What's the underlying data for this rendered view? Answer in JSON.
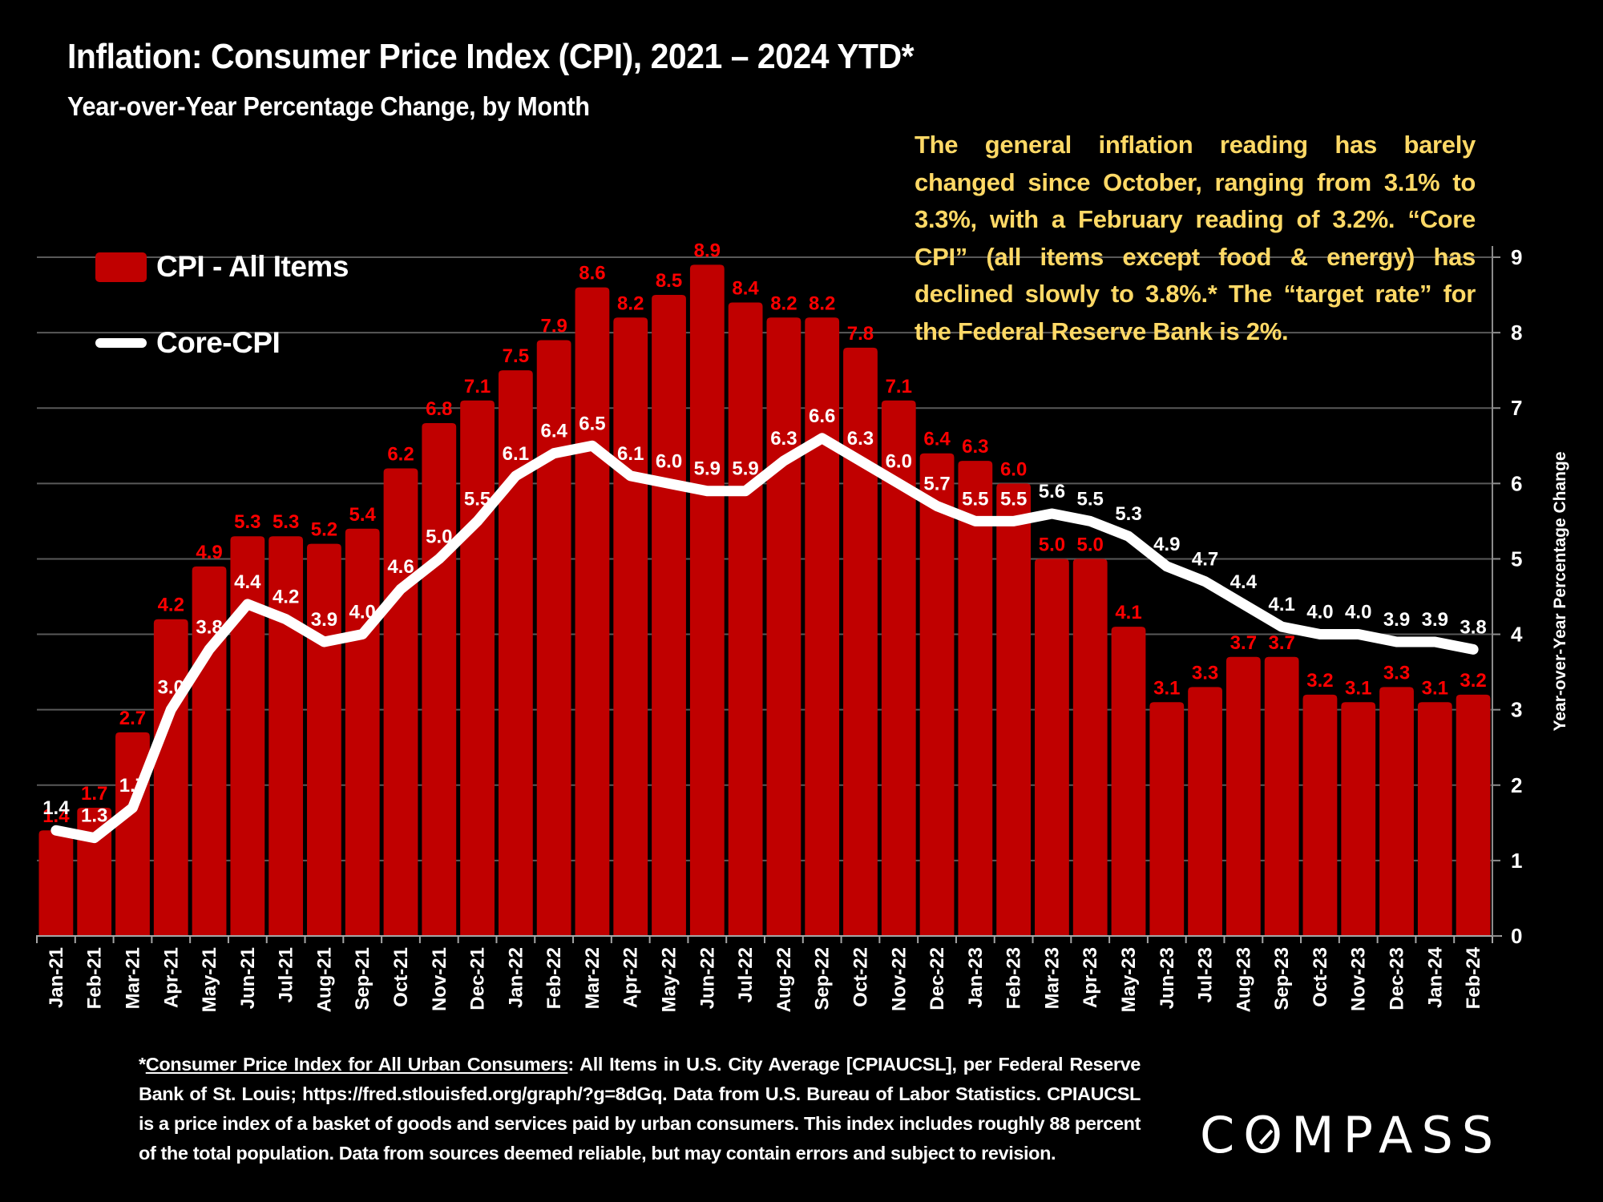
{
  "header": {
    "title": "Inflation: Consumer Price Index (CPI), 2021 – 2024 YTD*",
    "subtitle": "Year-over-Year Percentage Change, by Month"
  },
  "annotation": {
    "text": "The general inflation reading has barely changed since October, ranging from 3.1% to 3.3%, with a February reading of 3.2%. “Core CPI” (all items except food & energy) has declined slowly to 3.8%.*  The “target rate” for the Federal Reserve Bank is 2%.",
    "color": "#FFD966"
  },
  "footnote": {
    "prefix": "*",
    "link_text": "Consumer Price Index for All Urban Consumers",
    "body": ": All Items in U.S. City Average [CPIAUCSL], per Federal Reserve Bank of St. Louis; https://fred.stlouisfed.org/graph/?g=8dGq. Data from U.S. Bureau of Labor Statistics. CPIAUCSL is a price index of a basket of goods and services paid by urban consumers. This index includes roughly 88 percent of the total population. Data from sources deemed reliable, but may contain errors and subject to revision."
  },
  "logo": {
    "c": "C",
    "o": "O",
    "rest": "MPASS",
    "label": "COMPASS"
  },
  "chart_data": {
    "type": "bar",
    "title": "Inflation: Consumer Price Index (CPI), 2021 – 2024 YTD*",
    "subtitle": "Year-over-Year Percentage Change, by Month",
    "xlabel": "",
    "ylabel": "Year-over-Year Percentage Change",
    "ylim": [
      0,
      9
    ],
    "yticks": [
      "0",
      "1",
      "2",
      "3",
      "4",
      "5",
      "6",
      "7",
      "8",
      "9"
    ],
    "y_axis_side": "right",
    "grid": true,
    "legend_position": "top-left",
    "categories": [
      "Jan-21",
      "Feb-21",
      "Mar-21",
      "Apr-21",
      "May-21",
      "Jun-21",
      "Jul-21",
      "Aug-21",
      "Sep-21",
      "Oct-21",
      "Nov-21",
      "Dec-21",
      "Jan-22",
      "Feb-22",
      "Mar-22",
      "Apr-22",
      "May-22",
      "Jun-22",
      "Jul-22",
      "Aug-22",
      "Sep-22",
      "Oct-22",
      "Nov-22",
      "Dec-22",
      "Jan-23",
      "Feb-23",
      "Mar-23",
      "Apr-23",
      "May-23",
      "Jun-23",
      "Jul-23",
      "Aug-23",
      "Sep-23",
      "Oct-23",
      "Nov-23",
      "Dec-23",
      "Jan-24",
      "Feb-24"
    ],
    "series": [
      {
        "name": "CPI - All Items",
        "type": "bar",
        "color": "#C00000",
        "label_color": "#FF0000",
        "values": [
          1.4,
          1.7,
          2.7,
          4.2,
          4.9,
          5.3,
          5.3,
          5.2,
          5.4,
          6.2,
          6.8,
          7.1,
          7.5,
          7.9,
          8.6,
          8.2,
          8.5,
          8.9,
          8.4,
          8.2,
          8.2,
          7.8,
          7.1,
          6.4,
          6.3,
          6.0,
          5.0,
          5.0,
          4.1,
          3.1,
          3.3,
          3.7,
          3.7,
          3.2,
          3.1,
          3.3,
          3.1,
          3.2
        ]
      },
      {
        "name": "Core-CPI",
        "type": "line",
        "color": "#FFFFFF",
        "label_color": "#FFFFFF",
        "values": [
          1.4,
          1.3,
          1.7,
          3.0,
          3.8,
          4.4,
          4.2,
          3.9,
          4.0,
          4.6,
          5.0,
          5.5,
          6.1,
          6.4,
          6.5,
          6.1,
          6.0,
          5.9,
          5.9,
          6.3,
          6.6,
          6.3,
          6.0,
          5.7,
          5.5,
          5.5,
          5.6,
          5.5,
          5.3,
          4.9,
          4.7,
          4.4,
          4.1,
          4.0,
          4.0,
          3.9,
          3.9,
          3.8
        ]
      }
    ]
  }
}
